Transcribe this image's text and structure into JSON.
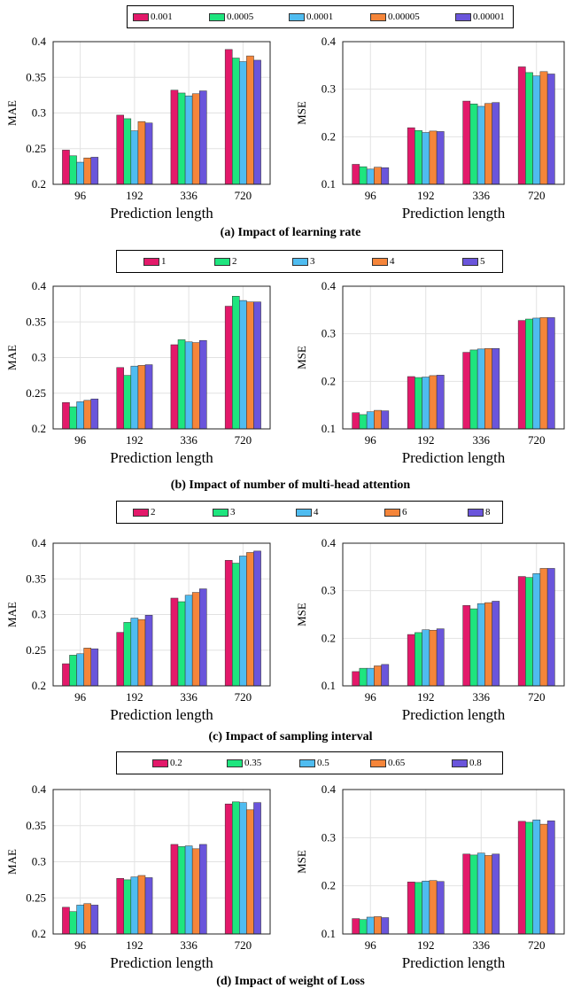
{
  "colors": [
    "#e3196a",
    "#1ee57e",
    "#4fbcf0",
    "#f5853a",
    "#6a55db"
  ],
  "categories": [
    "96",
    "192",
    "336",
    "720"
  ],
  "panels": [
    {
      "caption": "(a) Impact of learning rate",
      "legend": [
        "0.001",
        "0.0005",
        "0.0001",
        "0.00005",
        "0.00001"
      ],
      "xlabel": "Prediction length",
      "charts": [
        {
          "ylabel": "MAE",
          "ylim": [
            0.2,
            0.4
          ],
          "yticks": [
            "0.2",
            "0.25",
            "0.3",
            "0.35",
            "0.4"
          ],
          "ytick_values": [
            0.2,
            0.25,
            0.3,
            0.35,
            0.4
          ],
          "series": [
            [
              0.248,
              0.297,
              0.332,
              0.389
            ],
            [
              0.24,
              0.292,
              0.328,
              0.377
            ],
            [
              0.231,
              0.275,
              0.324,
              0.372
            ],
            [
              0.237,
              0.288,
              0.327,
              0.38
            ],
            [
              0.238,
              0.286,
              0.331,
              0.374
            ]
          ]
        },
        {
          "ylabel": "MSE",
          "ylim": [
            0.1,
            0.4
          ],
          "yticks": [
            "0.1",
            "0.2",
            "0.3",
            "0.4"
          ],
          "ytick_values": [
            0.1,
            0.2,
            0.3,
            0.4
          ],
          "series": [
            [
              0.142,
              0.219,
              0.275,
              0.347
            ],
            [
              0.137,
              0.213,
              0.269,
              0.335
            ],
            [
              0.132,
              0.209,
              0.264,
              0.328
            ],
            [
              0.136,
              0.212,
              0.27,
              0.337
            ],
            [
              0.135,
              0.211,
              0.272,
              0.332
            ]
          ]
        }
      ]
    },
    {
      "caption": "(b) Impact of number of multi-head attention",
      "legend": [
        "1",
        "2",
        "3",
        "4",
        "5"
      ],
      "xlabel": "Prediction length",
      "charts": [
        {
          "ylabel": "MAE",
          "ylim": [
            0.2,
            0.4
          ],
          "yticks": [
            "0.2",
            "0.25",
            "0.3",
            "0.35",
            "0.4"
          ],
          "ytick_values": [
            0.2,
            0.25,
            0.3,
            0.35,
            0.4
          ],
          "series": [
            [
              0.237,
              0.286,
              0.318,
              0.372
            ],
            [
              0.231,
              0.275,
              0.325,
              0.386
            ],
            [
              0.238,
              0.288,
              0.322,
              0.38
            ],
            [
              0.24,
              0.289,
              0.321,
              0.378
            ],
            [
              0.242,
              0.29,
              0.324,
              0.378
            ]
          ]
        },
        {
          "ylabel": "MSE",
          "ylim": [
            0.1,
            0.4
          ],
          "yticks": [
            "0.1",
            "0.2",
            "0.3",
            "0.4"
          ],
          "ytick_values": [
            0.1,
            0.2,
            0.3,
            0.4
          ],
          "series": [
            [
              0.134,
              0.21,
              0.261,
              0.328
            ],
            [
              0.13,
              0.208,
              0.266,
              0.331
            ],
            [
              0.136,
              0.209,
              0.268,
              0.333
            ],
            [
              0.139,
              0.212,
              0.269,
              0.334
            ],
            [
              0.138,
              0.213,
              0.269,
              0.334
            ]
          ]
        }
      ]
    },
    {
      "caption": "(c) Impact of sampling interval",
      "legend": [
        "2",
        "3",
        "4",
        "6",
        "8"
      ],
      "xlabel": "Prediction length",
      "charts": [
        {
          "ylabel": "MAE",
          "ylim": [
            0.2,
            0.4
          ],
          "yticks": [
            "0.2",
            "0.25",
            "0.3",
            "0.35",
            "0.4"
          ],
          "ytick_values": [
            0.2,
            0.25,
            0.3,
            0.35,
            0.4
          ],
          "series": [
            [
              0.231,
              0.275,
              0.323,
              0.376
            ],
            [
              0.243,
              0.289,
              0.318,
              0.372
            ],
            [
              0.245,
              0.295,
              0.327,
              0.382
            ],
            [
              0.253,
              0.293,
              0.331,
              0.387
            ],
            [
              0.252,
              0.299,
              0.336,
              0.389
            ]
          ]
        },
        {
          "ylabel": "MSE",
          "ylim": [
            0.1,
            0.4
          ],
          "yticks": [
            "0.1",
            "0.2",
            "0.3",
            "0.4"
          ],
          "ytick_values": [
            0.1,
            0.2,
            0.3,
            0.4
          ],
          "series": [
            [
              0.13,
              0.208,
              0.269,
              0.33
            ],
            [
              0.137,
              0.212,
              0.262,
              0.328
            ],
            [
              0.137,
              0.218,
              0.273,
              0.336
            ],
            [
              0.142,
              0.217,
              0.275,
              0.347
            ],
            [
              0.145,
              0.22,
              0.278,
              0.347
            ]
          ]
        }
      ]
    },
    {
      "caption": "(d) Impact of weight of Loss",
      "legend": [
        "0.2",
        "0.35",
        "0.5",
        "0.65",
        "0.8"
      ],
      "xlabel": "Prediction length",
      "charts": [
        {
          "ylabel": "MAE",
          "ylim": [
            0.2,
            0.4
          ],
          "yticks": [
            "0.2",
            "0.25",
            "0.3",
            "0.35",
            "0.4"
          ],
          "ytick_values": [
            0.2,
            0.25,
            0.3,
            0.35,
            0.4
          ],
          "series": [
            [
              0.237,
              0.277,
              0.324,
              0.38
            ],
            [
              0.231,
              0.275,
              0.321,
              0.383
            ],
            [
              0.24,
              0.279,
              0.322,
              0.382
            ],
            [
              0.242,
              0.281,
              0.318,
              0.372
            ],
            [
              0.24,
              0.278,
              0.324,
              0.382
            ]
          ]
        },
        {
          "ylabel": "MSE",
          "ylim": [
            0.1,
            0.4
          ],
          "yticks": [
            "0.1",
            "0.2",
            "0.3",
            "0.4"
          ],
          "ytick_values": [
            0.1,
            0.2,
            0.3,
            0.4
          ],
          "series": [
            [
              0.132,
              0.208,
              0.266,
              0.334
            ],
            [
              0.13,
              0.207,
              0.264,
              0.332
            ],
            [
              0.135,
              0.21,
              0.268,
              0.337
            ],
            [
              0.136,
              0.211,
              0.263,
              0.328
            ],
            [
              0.134,
              0.209,
              0.266,
              0.335
            ]
          ]
        }
      ]
    }
  ],
  "chart_data": [
    {
      "type": "bar",
      "title": "(a) Impact of learning rate",
      "xlabel": "Prediction length",
      "ylabel": "MAE",
      "ylim": [
        0.2,
        0.4
      ],
      "categories": [
        "96",
        "192",
        "336",
        "720"
      ],
      "series": [
        {
          "name": "0.001",
          "values": [
            0.248,
            0.297,
            0.332,
            0.389
          ]
        },
        {
          "name": "0.0005",
          "values": [
            0.24,
            0.292,
            0.328,
            0.377
          ]
        },
        {
          "name": "0.0001",
          "values": [
            0.231,
            0.275,
            0.324,
            0.372
          ]
        },
        {
          "name": "0.00005",
          "values": [
            0.237,
            0.288,
            0.327,
            0.38
          ]
        },
        {
          "name": "0.00001",
          "values": [
            0.238,
            0.286,
            0.331,
            0.374
          ]
        }
      ]
    },
    {
      "type": "bar",
      "title": "(a) Impact of learning rate",
      "xlabel": "Prediction length",
      "ylabel": "MSE",
      "ylim": [
        0.1,
        0.4
      ],
      "categories": [
        "96",
        "192",
        "336",
        "720"
      ],
      "series": [
        {
          "name": "0.001",
          "values": [
            0.142,
            0.219,
            0.275,
            0.347
          ]
        },
        {
          "name": "0.0005",
          "values": [
            0.137,
            0.213,
            0.269,
            0.335
          ]
        },
        {
          "name": "0.0001",
          "values": [
            0.132,
            0.209,
            0.264,
            0.328
          ]
        },
        {
          "name": "0.00005",
          "values": [
            0.136,
            0.212,
            0.27,
            0.337
          ]
        },
        {
          "name": "0.00001",
          "values": [
            0.135,
            0.211,
            0.272,
            0.332
          ]
        }
      ]
    },
    {
      "type": "bar",
      "title": "(b) Impact of number of multi-head attention",
      "xlabel": "Prediction length",
      "ylabel": "MAE",
      "ylim": [
        0.2,
        0.4
      ],
      "categories": [
        "96",
        "192",
        "336",
        "720"
      ],
      "series": [
        {
          "name": "1",
          "values": [
            0.237,
            0.286,
            0.318,
            0.372
          ]
        },
        {
          "name": "2",
          "values": [
            0.231,
            0.275,
            0.325,
            0.386
          ]
        },
        {
          "name": "3",
          "values": [
            0.238,
            0.288,
            0.322,
            0.38
          ]
        },
        {
          "name": "4",
          "values": [
            0.24,
            0.289,
            0.321,
            0.378
          ]
        },
        {
          "name": "5",
          "values": [
            0.242,
            0.29,
            0.324,
            0.378
          ]
        }
      ]
    },
    {
      "type": "bar",
      "title": "(b) Impact of number of multi-head attention",
      "xlabel": "Prediction length",
      "ylabel": "MSE",
      "ylim": [
        0.1,
        0.4
      ],
      "categories": [
        "96",
        "192",
        "336",
        "720"
      ],
      "series": [
        {
          "name": "1",
          "values": [
            0.134,
            0.21,
            0.261,
            0.328
          ]
        },
        {
          "name": "2",
          "values": [
            0.13,
            0.208,
            0.266,
            0.331
          ]
        },
        {
          "name": "3",
          "values": [
            0.136,
            0.209,
            0.268,
            0.333
          ]
        },
        {
          "name": "4",
          "values": [
            0.139,
            0.212,
            0.269,
            0.334
          ]
        },
        {
          "name": "5",
          "values": [
            0.138,
            0.213,
            0.269,
            0.334
          ]
        }
      ]
    },
    {
      "type": "bar",
      "title": "(c) Impact of sampling interval",
      "xlabel": "Prediction length",
      "ylabel": "MAE",
      "ylim": [
        0.2,
        0.4
      ],
      "categories": [
        "96",
        "192",
        "336",
        "720"
      ],
      "series": [
        {
          "name": "2",
          "values": [
            0.231,
            0.275,
            0.323,
            0.376
          ]
        },
        {
          "name": "3",
          "values": [
            0.243,
            0.289,
            0.318,
            0.372
          ]
        },
        {
          "name": "4",
          "values": [
            0.245,
            0.295,
            0.327,
            0.382
          ]
        },
        {
          "name": "6",
          "values": [
            0.253,
            0.293,
            0.331,
            0.387
          ]
        },
        {
          "name": "8",
          "values": [
            0.252,
            0.299,
            0.336,
            0.389
          ]
        }
      ]
    },
    {
      "type": "bar",
      "title": "(c) Impact of sampling interval",
      "xlabel": "Prediction length",
      "ylabel": "MSE",
      "ylim": [
        0.1,
        0.4
      ],
      "categories": [
        "96",
        "192",
        "336",
        "720"
      ],
      "series": [
        {
          "name": "2",
          "values": [
            0.13,
            0.208,
            0.269,
            0.33
          ]
        },
        {
          "name": "3",
          "values": [
            0.137,
            0.212,
            0.262,
            0.328
          ]
        },
        {
          "name": "4",
          "values": [
            0.137,
            0.218,
            0.273,
            0.336
          ]
        },
        {
          "name": "6",
          "values": [
            0.142,
            0.217,
            0.275,
            0.347
          ]
        },
        {
          "name": "8",
          "values": [
            0.145,
            0.22,
            0.278,
            0.347
          ]
        }
      ]
    },
    {
      "type": "bar",
      "title": "(d) Impact of weight of Loss",
      "xlabel": "Prediction length",
      "ylabel": "MAE",
      "ylim": [
        0.2,
        0.4
      ],
      "categories": [
        "96",
        "192",
        "336",
        "720"
      ],
      "series": [
        {
          "name": "0.2",
          "values": [
            0.237,
            0.277,
            0.324,
            0.38
          ]
        },
        {
          "name": "0.35",
          "values": [
            0.231,
            0.275,
            0.321,
            0.383
          ]
        },
        {
          "name": "0.5",
          "values": [
            0.24,
            0.279,
            0.322,
            0.382
          ]
        },
        {
          "name": "0.65",
          "values": [
            0.242,
            0.281,
            0.318,
            0.372
          ]
        },
        {
          "name": "0.8",
          "values": [
            0.24,
            0.278,
            0.324,
            0.382
          ]
        }
      ]
    },
    {
      "type": "bar",
      "title": "(d) Impact of weight of Loss",
      "xlabel": "Prediction length",
      "ylabel": "MSE",
      "ylim": [
        0.1,
        0.4
      ],
      "categories": [
        "96",
        "192",
        "336",
        "720"
      ],
      "series": [
        {
          "name": "0.2",
          "values": [
            0.132,
            0.208,
            0.266,
            0.334
          ]
        },
        {
          "name": "0.35",
          "values": [
            0.13,
            0.207,
            0.264,
            0.332
          ]
        },
        {
          "name": "0.5",
          "values": [
            0.135,
            0.21,
            0.268,
            0.337
          ]
        },
        {
          "name": "0.65",
          "values": [
            0.136,
            0.211,
            0.263,
            0.328
          ]
        },
        {
          "name": "0.8",
          "values": [
            0.134,
            0.209,
            0.266,
            0.335
          ]
        }
      ]
    }
  ]
}
